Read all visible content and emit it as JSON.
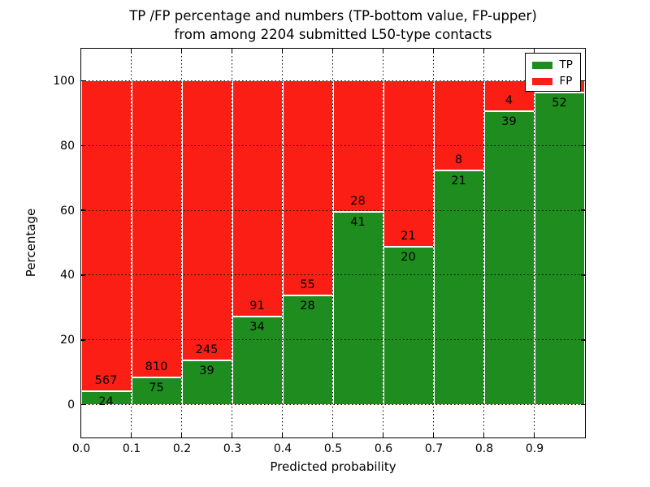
{
  "title": {
    "line1": "TP /FP percentage and numbers (TP-bottom value, FP-upper)",
    "line2": "from among 2204 submitted L50-type contacts"
  },
  "axes": {
    "xlabel": "Predicted probability",
    "ylabel": "Percentage",
    "ylim": [
      -10,
      110
    ],
    "xlim": [
      0.0,
      1.0
    ],
    "ytick_labels": [
      "0",
      "20",
      "40",
      "60",
      "80",
      "100"
    ],
    "ytick_values": [
      0,
      20,
      40,
      60,
      80,
      100
    ],
    "xtick_labels": [
      "0.0",
      "0.1",
      "0.2",
      "0.3",
      "0.4",
      "0.5",
      "0.6",
      "0.7",
      "0.8",
      "0.9"
    ],
    "xtick_values": [
      0.0,
      0.1,
      0.2,
      0.3,
      0.4,
      0.5,
      0.6,
      0.7,
      0.8,
      0.9
    ],
    "grid": "dotted"
  },
  "legend": {
    "position": "upper-right",
    "items": [
      {
        "label": "TP",
        "color": "#1e8c1e"
      },
      {
        "label": "FP",
        "color": "#fa1e14"
      }
    ]
  },
  "colors": {
    "tp": "#1e8c1e",
    "fp": "#fa1e14",
    "bar_edge": "#ffffff",
    "text": "#000000",
    "background": "#ffffff"
  },
  "chart_data": {
    "type": "bar",
    "stacked": true,
    "normalized_total": 100,
    "title": "TP /FP percentage and numbers (TP-bottom value, FP-upper) from among 2204 submitted L50-type contacts",
    "xlabel": "Predicted probability",
    "ylabel": "Percentage",
    "ylim": [
      -10,
      110
    ],
    "bin_width": 0.1,
    "legend": [
      "TP",
      "FP"
    ],
    "bins": [
      {
        "range": [
          0.0,
          0.1
        ],
        "tp": 24,
        "fp": 567,
        "tp_pct": 4.1,
        "tp_label": "24",
        "fp_label": "567"
      },
      {
        "range": [
          0.1,
          0.2
        ],
        "tp": 75,
        "fp": 810,
        "tp_pct": 8.5,
        "tp_label": "75",
        "fp_label": "810"
      },
      {
        "range": [
          0.2,
          0.3
        ],
        "tp": 39,
        "fp": 245,
        "tp_pct": 13.7,
        "tp_label": "39",
        "fp_label": "245"
      },
      {
        "range": [
          0.3,
          0.4
        ],
        "tp": 34,
        "fp": 91,
        "tp_pct": 27.2,
        "tp_label": "34",
        "fp_label": "91"
      },
      {
        "range": [
          0.4,
          0.5
        ],
        "tp": 28,
        "fp": 55,
        "tp_pct": 33.7,
        "tp_label": "28",
        "fp_label": "55"
      },
      {
        "range": [
          0.5,
          0.6
        ],
        "tp": 41,
        "fp": 28,
        "tp_pct": 59.4,
        "tp_label": "41",
        "fp_label": "28"
      },
      {
        "range": [
          0.6,
          0.7
        ],
        "tp": 20,
        "fp": 21,
        "tp_pct": 48.8,
        "tp_label": "20",
        "fp_label": "21"
      },
      {
        "range": [
          0.7,
          0.8
        ],
        "tp": 21,
        "fp": 8,
        "tp_pct": 72.4,
        "tp_label": "21",
        "fp_label": "8"
      },
      {
        "range": [
          0.8,
          0.9
        ],
        "tp": 39,
        "fp": 4,
        "tp_pct": 90.7,
        "tp_label": "39",
        "fp_label": "4"
      },
      {
        "range": [
          0.9,
          1.0
        ],
        "tp": 52,
        "fp": null,
        "tp_pct": 96.3,
        "tp_label": "52",
        "fp_label": "",
        "fp_label_hidden_by_legend": true
      }
    ]
  }
}
